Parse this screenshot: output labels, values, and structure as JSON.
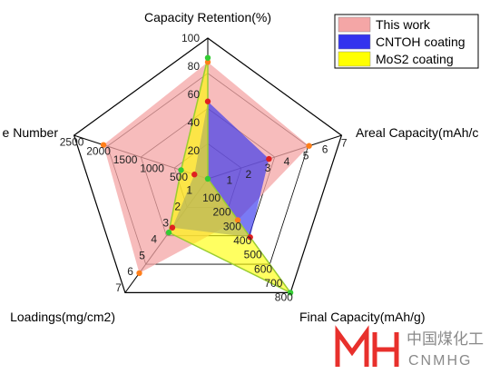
{
  "chart_data": {
    "type": "radar",
    "axes": [
      {
        "label": "Capacity Retention(%)",
        "ticks": [
          "20",
          "40",
          "60",
          "80",
          "100"
        ],
        "range": [
          0,
          100
        ]
      },
      {
        "label": "Areal Capacity(mAh/c",
        "ticks": [
          "1",
          "2",
          "3",
          "4",
          "5",
          "6",
          "7"
        ],
        "range": [
          0,
          7
        ]
      },
      {
        "label": "Final Capacity(mAh/g)",
        "ticks": [
          "100",
          "200",
          "300",
          "400",
          "500",
          "600",
          "700",
          "800"
        ],
        "range": [
          0,
          800
        ]
      },
      {
        "label": "Loadings(mg/cm2)",
        "ticks": [
          "1",
          "2",
          "3",
          "4",
          "5",
          "6",
          "7"
        ],
        "range": [
          0,
          7
        ]
      },
      {
        "label": "e Number",
        "ticks": [
          "500",
          "1000",
          "1500",
          "2000",
          "2500"
        ],
        "range": [
          0,
          2500
        ]
      }
    ],
    "series": [
      {
        "name": "This work",
        "color": "#f4a6a6",
        "values": [
          83,
          5.3,
          290,
          5.8,
          1950
        ]
      },
      {
        "name": "CNTOH coating",
        "color": "#3333ee",
        "values": [
          55,
          3.2,
          410,
          3.0,
          250
        ]
      },
      {
        "name": "MoS2 coating",
        "color": "#ffff00",
        "values": [
          86,
          0.0,
          800,
          3.3,
          500
        ]
      }
    ],
    "markers": [
      {
        "series": "This work",
        "color": "#ff7f1a"
      },
      {
        "series": "CNTOH coating",
        "color": "#e02020"
      },
      {
        "series": "MoS2 coating",
        "color": "#33cc33"
      }
    ],
    "legend": {
      "position": "top-right",
      "entries": [
        "This work",
        "CNTOH coating",
        "MoS2 coating"
      ]
    }
  },
  "watermark": {
    "chinese": "中国煤化工",
    "latin": "CNMHG",
    "logo_color": "#e8302c"
  }
}
